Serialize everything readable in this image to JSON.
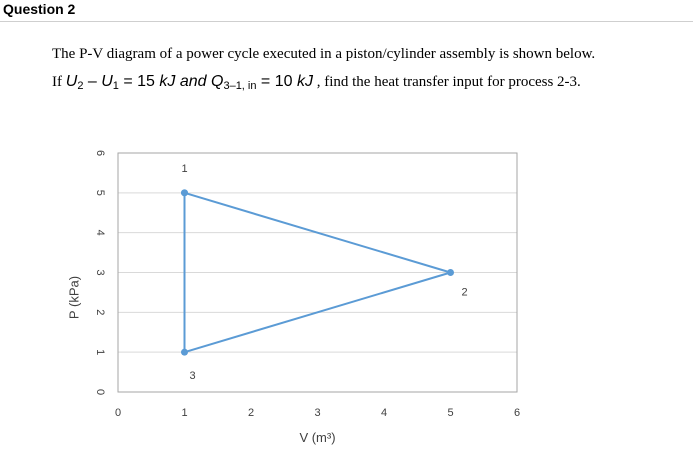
{
  "question": {
    "title": "Question 2"
  },
  "problem": {
    "line1": "The P-V diagram of a power cycle executed in a piston/cylinder assembly is shown below.",
    "line2_prefix": "If ",
    "U2": "U",
    "U2_sub": "2",
    "minus": " – ",
    "U1": "U",
    "U1_sub": "1",
    "eq1": " = 15 ",
    "unit1": "kJ",
    "and": " and ",
    "Q": "Q",
    "Q_sub": "3–1, in",
    "eq2": " = 10 ",
    "unit2": "kJ",
    "line2_suffix": " ,  find the heat transfer input for process 2-3."
  },
  "chart_data": {
    "type": "line",
    "title": "",
    "xlabel": "V (m³)",
    "ylabel": "P (kPa)",
    "xlim": [
      0,
      6
    ],
    "ylim": [
      0,
      6
    ],
    "x_ticks": [
      "0",
      "1",
      "2",
      "3",
      "4",
      "5",
      "6"
    ],
    "y_ticks": [
      "0",
      "1",
      "2",
      "3",
      "4",
      "5",
      "6"
    ],
    "grid": "horizontal",
    "legend": "none",
    "series": [
      {
        "points": [
          [
            1,
            5
          ],
          [
            5,
            3
          ],
          [
            1,
            1
          ],
          [
            1,
            5
          ]
        ],
        "color": "#5b9bd5"
      }
    ],
    "state_points": [
      {
        "label": "1",
        "x": 1,
        "y": 5
      },
      {
        "label": "2",
        "x": 5,
        "y": 3
      },
      {
        "label": "3",
        "x": 1,
        "y": 1
      }
    ]
  }
}
